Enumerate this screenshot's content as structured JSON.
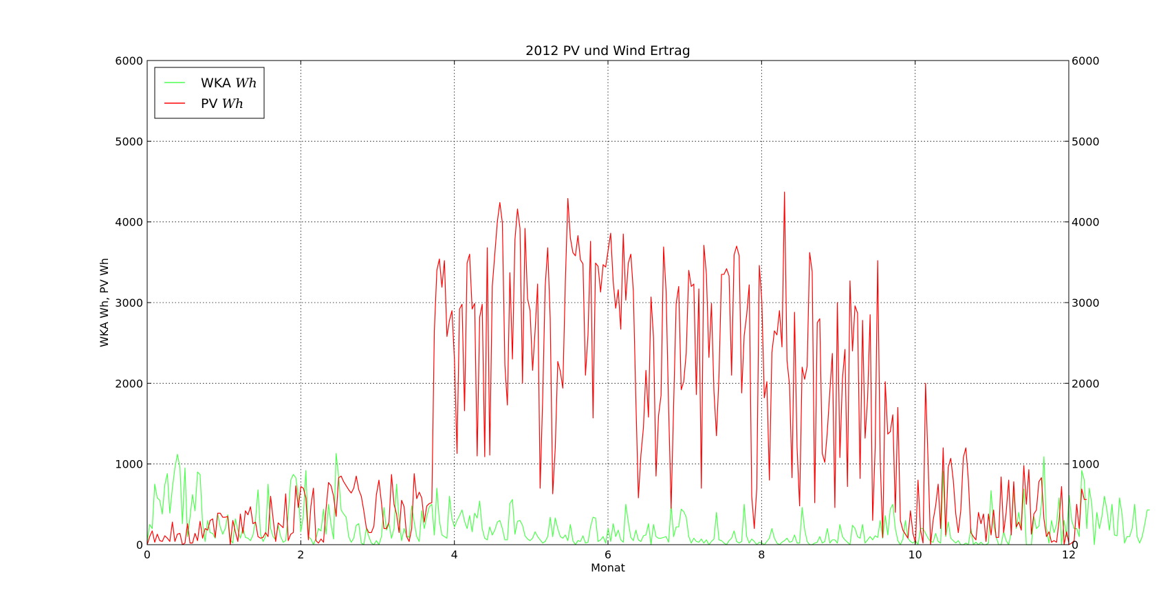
{
  "chart_data": {
    "type": "line",
    "title": "2012 PV und Wind Ertrag",
    "xlabel": "Monat",
    "ylabel": "WKA Wh, PV Wh",
    "xlim": [
      0,
      12
    ],
    "ylim": [
      0,
      6000
    ],
    "x_ticks": [
      0,
      2,
      4,
      6,
      8,
      10,
      12
    ],
    "y_ticks": [
      0,
      1000,
      2000,
      3000,
      4000,
      5000,
      6000
    ],
    "grid": true,
    "legend_position": "top-left",
    "secondary_y_axis": true,
    "series": [
      {
        "name": "WKA Wh",
        "legend_label": "WKA",
        "legend_unit": "Wh",
        "color": "#4dff4d",
        "x_step": 0.0328,
        "values": [
          40,
          250,
          200,
          750,
          580,
          550,
          380,
          740,
          880,
          390,
          700,
          950,
          1120,
          960,
          260,
          950,
          100,
          340,
          620,
          420,
          900,
          870,
          260,
          40,
          300,
          150,
          140,
          80,
          380,
          220,
          130,
          200,
          370,
          60,
          20,
          320,
          180,
          80,
          210,
          90,
          80,
          50,
          120,
          300,
          680,
          130,
          40,
          100,
          750,
          200,
          100,
          60,
          240,
          100,
          30,
          50,
          380,
          800,
          870,
          830,
          620,
          160,
          360,
          920,
          100,
          70,
          0,
          80,
          200,
          170,
          440,
          130,
          500,
          250,
          70,
          1130,
          850,
          430,
          380,
          340,
          100,
          30,
          80,
          240,
          260,
          20,
          0,
          200,
          100,
          20,
          0,
          50,
          0,
          100,
          460,
          180,
          260,
          80,
          200,
          750,
          300,
          50,
          200,
          110,
          90,
          480,
          280,
          100,
          40,
          420,
          200,
          350,
          470,
          500,
          120,
          700,
          300,
          120,
          100,
          80,
          600,
          320,
          220,
          300,
          360,
          430,
          290,
          200,
          360,
          160,
          390,
          330,
          540,
          200,
          80,
          60,
          220,
          120,
          180,
          280,
          300,
          200,
          60,
          60,
          510,
          560,
          130,
          290,
          300,
          240,
          110,
          70,
          50,
          80,
          160,
          100,
          60,
          20,
          40,
          100,
          340,
          100,
          330,
          200,
          100,
          80,
          120,
          50,
          250,
          50,
          0,
          50,
          40,
          110,
          20,
          30,
          220,
          340,
          330,
          40,
          60,
          100,
          20,
          200,
          40,
          260,
          100,
          180,
          60,
          30,
          500,
          280,
          90,
          50,
          180,
          60,
          40,
          110,
          120,
          260,
          0,
          250,
          100,
          80,
          80,
          90,
          100,
          30,
          490,
          100,
          220,
          220,
          440,
          410,
          340,
          100,
          20,
          80,
          40,
          30,
          70,
          20,
          60,
          0,
          40,
          70,
          400,
          60,
          50,
          20,
          0,
          50,
          80,
          170,
          40,
          20,
          40,
          500,
          100,
          20,
          70,
          40,
          0,
          30,
          20,
          0,
          40,
          80,
          200,
          80,
          20,
          0,
          30,
          50,
          80,
          30,
          40,
          120,
          20,
          20,
          460,
          190,
          40,
          0,
          0,
          20,
          30,
          100,
          20,
          40,
          200,
          20,
          60,
          60,
          20,
          250,
          100,
          60,
          30,
          0,
          240,
          200,
          100,
          80,
          250,
          20,
          60,
          100,
          60,
          110,
          90,
          300,
          80,
          360,
          120,
          440,
          500,
          200,
          50,
          0,
          70,
          300,
          80,
          40,
          20,
          50,
          0,
          200,
          200,
          140,
          80,
          40,
          30,
          140,
          40,
          20,
          910,
          100,
          280,
          80,
          50,
          20,
          50,
          0,
          0,
          20,
          0,
          200,
          0,
          30,
          0,
          30,
          0,
          0,
          20,
          670,
          250,
          100,
          0,
          0,
          160,
          50,
          0,
          150,
          700,
          200,
          400,
          200,
          690,
          0,
          0,
          0,
          350,
          200,
          230,
          500,
          1090,
          200,
          20,
          300,
          150,
          250,
          580,
          0,
          300,
          100,
          610,
          300,
          200,
          200,
          100,
          920,
          800,
          200,
          700,
          500,
          0,
          400,
          200,
          350,
          600,
          430,
          180,
          500,
          120,
          110,
          580,
          380,
          20,
          100,
          100,
          200,
          500,
          100,
          20,
          100,
          250,
          430,
          430
        ]
      },
      {
        "name": "PV Wh",
        "legend_label": "PV",
        "legend_unit": "Wh",
        "color": "#ff0000",
        "x_step": 0.0328,
        "values": [
          0,
          100,
          170,
          30,
          130,
          50,
          40,
          110,
          80,
          40,
          280,
          40,
          130,
          140,
          0,
          20,
          260,
          20,
          20,
          140,
          50,
          290,
          80,
          200,
          180,
          300,
          320,
          90,
          390,
          390,
          340,
          340,
          350,
          0,
          300,
          160,
          40,
          380,
          140,
          420,
          370,
          470,
          260,
          280,
          100,
          80,
          90,
          150,
          100,
          600,
          320,
          40,
          270,
          240,
          210,
          630,
          50,
          130,
          150,
          730,
          460,
          720,
          700,
          580,
          60,
          480,
          700,
          50,
          20,
          70,
          30,
          440,
          770,
          730,
          600,
          350,
          830,
          850,
          780,
          730,
          680,
          640,
          700,
          850,
          680,
          600,
          420,
          210,
          150,
          150,
          230,
          620,
          800,
          520,
          200,
          200,
          280,
          870,
          500,
          380,
          150,
          550,
          470,
          100,
          40,
          200,
          880,
          570,
          650,
          580,
          280,
          480,
          510,
          520,
          2650,
          3400,
          3540,
          3190,
          3520,
          2580,
          2780,
          2900,
          2280,
          1130,
          2920,
          2980,
          1660,
          3490,
          3600,
          2920,
          2990,
          1100,
          2820,
          2980,
          1090,
          3680,
          1110,
          3200,
          3600,
          4000,
          4240,
          3990,
          2230,
          1730,
          3370,
          2300,
          3780,
          4160,
          3920,
          2000,
          3920,
          3050,
          2900,
          2160,
          2650,
          3230,
          700,
          1800,
          3200,
          3680,
          2800,
          630,
          1200,
          2270,
          2150,
          1940,
          3250,
          4290,
          3800,
          3620,
          3580,
          3830,
          3530,
          3480,
          2100,
          2600,
          3760,
          1570,
          3490,
          3450,
          3130,
          3470,
          3440,
          3650,
          3860,
          3260,
          2930,
          3160,
          2670,
          3850,
          3030,
          3490,
          3600,
          3140,
          1790,
          580,
          1110,
          1450,
          2160,
          1580,
          3070,
          2570,
          850,
          1600,
          1850,
          3690,
          3140,
          1700,
          450,
          1740,
          2990,
          3200,
          1920,
          2020,
          2380,
          3400,
          3200,
          3230,
          1860,
          3170,
          700,
          3710,
          3350,
          2320,
          2990,
          1900,
          1350,
          2100,
          3350,
          3350,
          3420,
          3330,
          2100,
          3590,
          3700,
          3580,
          1880,
          2590,
          2850,
          3220,
          600,
          200,
          700,
          3460,
          3020,
          1820,
          2020,
          800,
          2380,
          2650,
          2600,
          2900,
          2450,
          4370,
          2280,
          1980,
          830,
          2880,
          1200,
          480,
          2200,
          2050,
          2210,
          3620,
          3380,
          520,
          2750,
          2800,
          1130,
          1020,
          1400,
          1900,
          2370,
          460,
          3000,
          1080,
          2050,
          2420,
          720,
          3270,
          2400,
          2960,
          2870,
          820,
          2780,
          1320,
          1820,
          2850,
          300,
          1200,
          3520,
          1050,
          90,
          2020,
          1370,
          1400,
          1610,
          400,
          1700,
          300,
          180,
          130,
          80,
          420,
          140,
          20,
          800,
          180,
          20,
          2000,
          1030,
          0,
          300,
          480,
          750,
          200,
          1200,
          120,
          960,
          1070,
          800,
          380,
          150,
          430,
          1080,
          1200,
          800,
          150,
          100,
          60,
          400,
          260,
          380,
          40,
          380,
          120,
          430,
          90,
          90,
          840,
          150,
          400,
          800,
          120,
          780,
          220,
          280,
          180,
          980,
          500,
          930,
          130,
          380,
          430,
          780,
          830,
          320,
          100,
          160,
          30,
          50,
          30,
          300,
          720,
          0,
          160,
          0,
          20,
          50,
          500,
          200,
          690,
          560,
          560
        ]
      }
    ]
  }
}
